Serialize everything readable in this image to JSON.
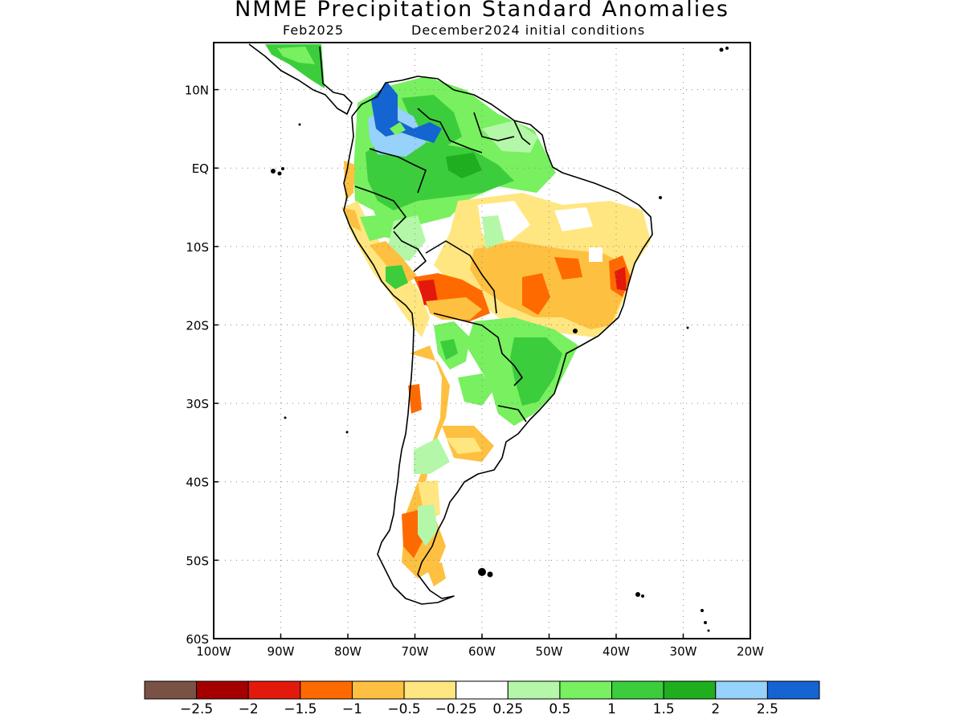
{
  "header": {
    "title": "NMME Precipitation Standard Anomalies",
    "target_month": "Feb2025",
    "initial_conditions": "December2024 initial conditions"
  },
  "axes": {
    "lon_labels": [
      "100W",
      "90W",
      "80W",
      "70W",
      "60W",
      "50W",
      "40W",
      "30W",
      "20W"
    ],
    "lon_values": [
      -100,
      -90,
      -80,
      -70,
      -60,
      -50,
      -40,
      -30,
      -20
    ],
    "lat_labels": [
      "10N",
      "EQ",
      "10S",
      "20S",
      "30S",
      "40S",
      "50S",
      "60S"
    ],
    "lat_values": [
      10,
      0,
      -10,
      -20,
      -30,
      -40,
      -50,
      -60
    ],
    "lon_range": [
      -100,
      -20
    ],
    "lat_range": [
      -60,
      16
    ],
    "grid": "dotted"
  },
  "legend": {
    "colors": [
      "#7a5245",
      "#a50000",
      "#e31a0b",
      "#ff6a00",
      "#fec040",
      "#ffe680",
      "#ffffff",
      "#b4f7a8",
      "#78f060",
      "#3ccd3c",
      "#1eae1e",
      "#96d2fa",
      "#1464d2"
    ],
    "labels": [
      "-2.5",
      "-2",
      "-1.5",
      "-1",
      "-0.5",
      "-0.25",
      "0.25",
      "0.5",
      "1",
      "1.5",
      "2",
      "2.5"
    ]
  }
}
